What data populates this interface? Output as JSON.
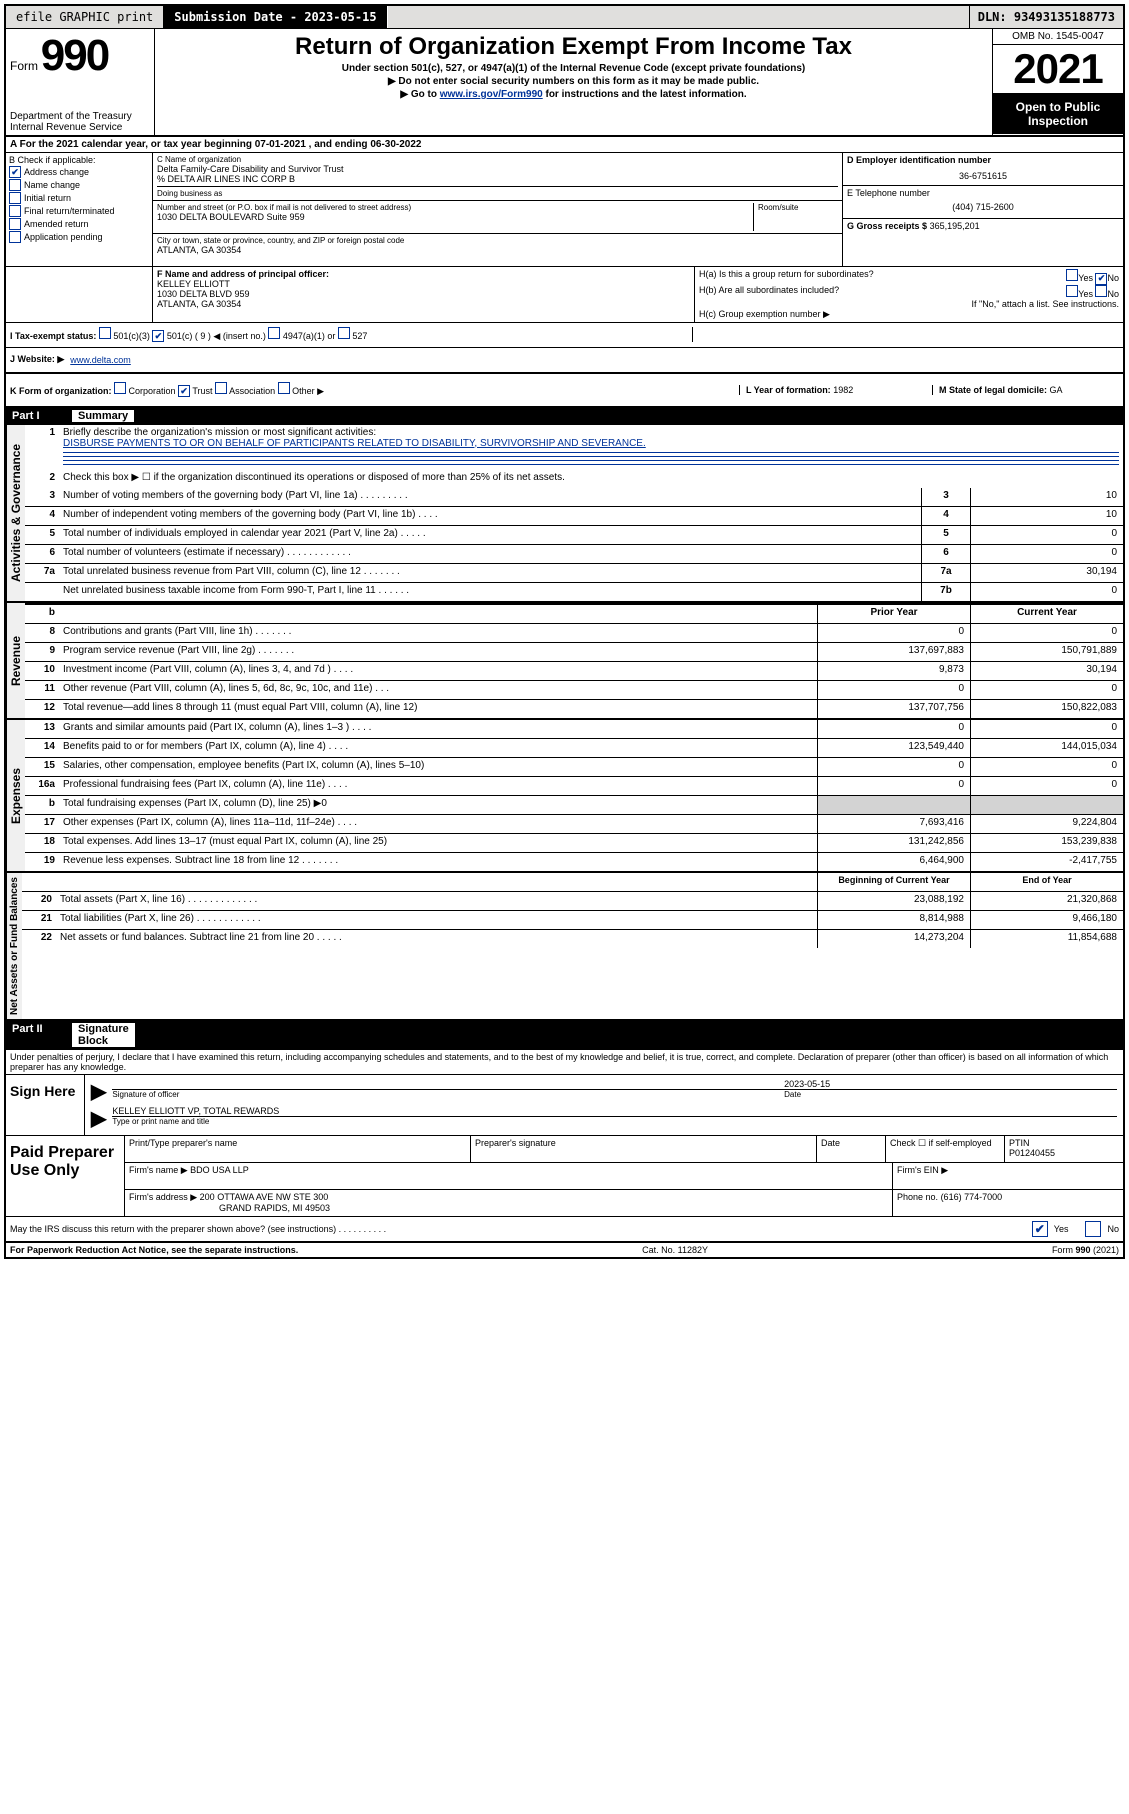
{
  "topbar": {
    "efile": "efile GRAPHIC print",
    "submission_label": "Submission Date - 2023-05-15",
    "dln": "DLN: 93493135188773"
  },
  "header": {
    "form_prefix": "Form",
    "form_number": "990",
    "dept": "Department of the Treasury\nInternal Revenue Service",
    "title": "Return of Organization Exempt From Income Tax",
    "subtitle1": "Under section 501(c), 527, or 4947(a)(1) of the Internal Revenue Code (except private foundations)",
    "subtitle2": "▶ Do not enter social security numbers on this form as it may be made public.",
    "subtitle3_pre": "▶ Go to ",
    "subtitle3_link": "www.irs.gov/Form990",
    "subtitle3_post": " for instructions and the latest information.",
    "omb": "OMB No. 1545-0047",
    "year": "2021",
    "open": "Open to Public Inspection"
  },
  "row_a": "A For the 2021 calendar year, or tax year beginning 07-01-2021   , and ending 06-30-2022",
  "section_b": {
    "title": "B Check if applicable:",
    "items": [
      {
        "label": "Address change",
        "checked": true
      },
      {
        "label": "Name change",
        "checked": false
      },
      {
        "label": "Initial return",
        "checked": false
      },
      {
        "label": "Final return/terminated",
        "checked": false
      },
      {
        "label": "Amended return",
        "checked": false
      },
      {
        "label": "Application pending",
        "checked": false
      }
    ]
  },
  "section_c": {
    "name_label": "C Name of organization",
    "name": "Delta Family-Care Disability and Survivor Trust",
    "care_of": "% DELTA AIR LINES INC CORP B",
    "dba_label": "Doing business as",
    "addr_label": "Number and street (or P.O. box if mail is not delivered to street address)",
    "addr": "1030 DELTA BOULEVARD Suite 959",
    "room_label": "Room/suite",
    "city_label": "City or town, state or province, country, and ZIP or foreign postal code",
    "city": "ATLANTA, GA  30354"
  },
  "section_de": {
    "ein_label": "D Employer identification number",
    "ein": "36-6751615",
    "phone_label": "E Telephone number",
    "phone": "(404) 715-2600",
    "gross_label": "G Gross receipts $",
    "gross": "365,195,201"
  },
  "section_f": {
    "label": "F  Name and address of principal officer:",
    "name": "KELLEY ELLIOTT",
    "addr1": "1030 DELTA BLVD 959",
    "addr2": "ATLANTA, GA  30354"
  },
  "section_h": {
    "ha_label": "H(a)  Is this a group return for subordinates?",
    "ha_yes": "Yes",
    "ha_no": "No",
    "hb_label": "H(b)  Are all subordinates included?",
    "hb_yes": "Yes",
    "hb_no": "No",
    "hb_note": "If \"No,\" attach a list. See instructions.",
    "hc_label": "H(c)  Group exemption number ▶"
  },
  "row_i": {
    "label": "I  Tax-exempt status:",
    "opts": [
      "501(c)(3)",
      "501(c) ( 9 ) ◀ (insert no.)",
      "4947(a)(1) or",
      "527"
    ],
    "checked_index": 1
  },
  "row_j": {
    "label": "J  Website: ▶",
    "value": "www.delta.com"
  },
  "row_k": {
    "label": "K Form of organization:",
    "opts": [
      "Corporation",
      "Trust",
      "Association",
      "Other ▶"
    ],
    "checked_index": 1,
    "l_label": "L Year of formation:",
    "l_value": "1982",
    "m_label": "M State of legal domicile:",
    "m_value": "GA"
  },
  "part1": {
    "num": "Part I",
    "title": "Summary"
  },
  "summary_top": {
    "q1_num": "1",
    "q1_text": "Briefly describe the organization's mission or most significant activities:",
    "q1_answer": "DISBURSE PAYMENTS TO OR ON BEHALF OF PARTICIPANTS RELATED TO DISABILITY, SURVIVORSHIP AND SEVERANCE.",
    "q2_num": "2",
    "q2_text": "Check this box ▶ ☐  if the organization discontinued its operations or disposed of more than 25% of its net assets."
  },
  "gov_rows": [
    {
      "num": "3",
      "desc": "Number of voting members of the governing body (Part VI, line 1a)   .   .   .   .   .   .   .   .   .",
      "cell_num": "3",
      "val": "10"
    },
    {
      "num": "4",
      "desc": "Number of independent voting members of the governing body (Part VI, line 1b)   .   .   .   .",
      "cell_num": "4",
      "val": "10"
    },
    {
      "num": "5",
      "desc": "Total number of individuals employed in calendar year 2021 (Part V, line 2a)   .   .   .   .   .",
      "cell_num": "5",
      "val": "0"
    },
    {
      "num": "6",
      "desc": "Total number of volunteers (estimate if necessary)   .   .   .   .   .   .   .   .   .   .   .   .",
      "cell_num": "6",
      "val": "0"
    },
    {
      "num": "7a",
      "desc": "Total unrelated business revenue from Part VIII, column (C), line 12   .   .   .   .   .   .   .",
      "cell_num": "7a",
      "val": "30,194"
    },
    {
      "num": "",
      "desc": "Net unrelated business taxable income from Form 990-T, Part I, line 11   .   .   .   .   .   .",
      "cell_num": "7b",
      "val": "0"
    }
  ],
  "two_col_headers": {
    "prior": "Prior Year",
    "current": "Current Year"
  },
  "revenue_rows": [
    {
      "num": "8",
      "desc": "Contributions and grants (Part VIII, line 1h)   .   .   .   .   .   .   .",
      "prior": "0",
      "current": "0"
    },
    {
      "num": "9",
      "desc": "Program service revenue (Part VIII, line 2g)   .   .   .   .   .   .   .",
      "prior": "137,697,883",
      "current": "150,791,889"
    },
    {
      "num": "10",
      "desc": "Investment income (Part VIII, column (A), lines 3, 4, and 7d )   .   .   .   .",
      "prior": "9,873",
      "current": "30,194"
    },
    {
      "num": "11",
      "desc": "Other revenue (Part VIII, column (A), lines 5, 6d, 8c, 9c, 10c, and 11e)   .   .   .",
      "prior": "0",
      "current": "0"
    },
    {
      "num": "12",
      "desc": "Total revenue—add lines 8 through 11 (must equal Part VIII, column (A), line 12)",
      "prior": "137,707,756",
      "current": "150,822,083"
    }
  ],
  "expense_rows": [
    {
      "num": "13",
      "desc": "Grants and similar amounts paid (Part IX, column (A), lines 1–3 )   .   .   .   .",
      "prior": "0",
      "current": "0"
    },
    {
      "num": "14",
      "desc": "Benefits paid to or for members (Part IX, column (A), line 4)   .   .   .   .",
      "prior": "123,549,440",
      "current": "144,015,034"
    },
    {
      "num": "15",
      "desc": "Salaries, other compensation, employee benefits (Part IX, column (A), lines 5–10)",
      "prior": "0",
      "current": "0"
    },
    {
      "num": "16a",
      "desc": "Professional fundraising fees (Part IX, column (A), line 11e)   .   .   .   .",
      "prior": "0",
      "current": "0"
    },
    {
      "num": "b",
      "desc": "Total fundraising expenses (Part IX, column (D), line 25) ▶0",
      "prior": "",
      "current": "",
      "gray": true
    },
    {
      "num": "17",
      "desc": "Other expenses (Part IX, column (A), lines 11a–11d, 11f–24e)   .   .   .   .",
      "prior": "7,693,416",
      "current": "9,224,804"
    },
    {
      "num": "18",
      "desc": "Total expenses. Add lines 13–17 (must equal Part IX, column (A), line 25)",
      "prior": "131,242,856",
      "current": "153,239,838"
    },
    {
      "num": "19",
      "desc": "Revenue less expenses. Subtract line 18 from line 12   .   .   .   .   .   .   .",
      "prior": "6,464,900",
      "current": "-2,417,755"
    }
  ],
  "net_headers": {
    "begin": "Beginning of Current Year",
    "end": "End of Year"
  },
  "net_rows": [
    {
      "num": "20",
      "desc": "Total assets (Part X, line 16)   .   .   .   .   .   .   .   .   .   .   .   .   .",
      "prior": "23,088,192",
      "current": "21,320,868"
    },
    {
      "num": "21",
      "desc": "Total liabilities (Part X, line 26)   .   .   .   .   .   .   .   .   .   .   .   .",
      "prior": "8,814,988",
      "current": "9,466,180"
    },
    {
      "num": "22",
      "desc": "Net assets or fund balances. Subtract line 21 from line 20   .   .   .   .   .",
      "prior": "14,273,204",
      "current": "11,854,688"
    }
  ],
  "part2": {
    "num": "Part II",
    "title": "Signature Block"
  },
  "penalty": "Under penalties of perjury, I declare that I have examined this return, including accompanying schedules and statements, and to the best of my knowledge and belief, it is true, correct, and complete. Declaration of preparer (other than officer) is based on all information of which preparer has any knowledge.",
  "sign": {
    "label": "Sign Here",
    "sig_label": "Signature of officer",
    "date_label": "Date",
    "date": "2023-05-15",
    "name": "KELLEY ELLIOTT  VP, TOTAL REWARDS",
    "name_label": "Type or print name and title"
  },
  "preparer": {
    "label": "Paid Preparer Use Only",
    "h1": "Print/Type preparer's name",
    "h2": "Preparer's signature",
    "h3": "Date",
    "h4_pre": "Check ☐ if self-employed",
    "h5": "PTIN",
    "ptin": "P01240455",
    "firm_name_label": "Firm's name    ▶",
    "firm_name": "BDO USA LLP",
    "firm_ein_label": "Firm's EIN ▶",
    "firm_addr_label": "Firm's address ▶",
    "firm_addr1": "200 OTTAWA AVE NW STE 300",
    "firm_addr2": "GRAND RAPIDS, MI  49503",
    "phone_label": "Phone no.",
    "phone": "(616) 774-7000"
  },
  "irs_discuss": {
    "text": "May the IRS discuss this return with the preparer shown above? (see instructions)   .   .   .   .   .   .   .   .   .   .",
    "yes": "Yes",
    "no": "No"
  },
  "footer": {
    "left": "For Paperwork Reduction Act Notice, see the separate instructions.",
    "center": "Cat. No. 11282Y",
    "right": "Form 990 (2021)"
  },
  "vert_labels": {
    "gov": "Activities & Governance",
    "rev": "Revenue",
    "exp": "Expenses",
    "net": "Net Assets or Fund Balances"
  }
}
